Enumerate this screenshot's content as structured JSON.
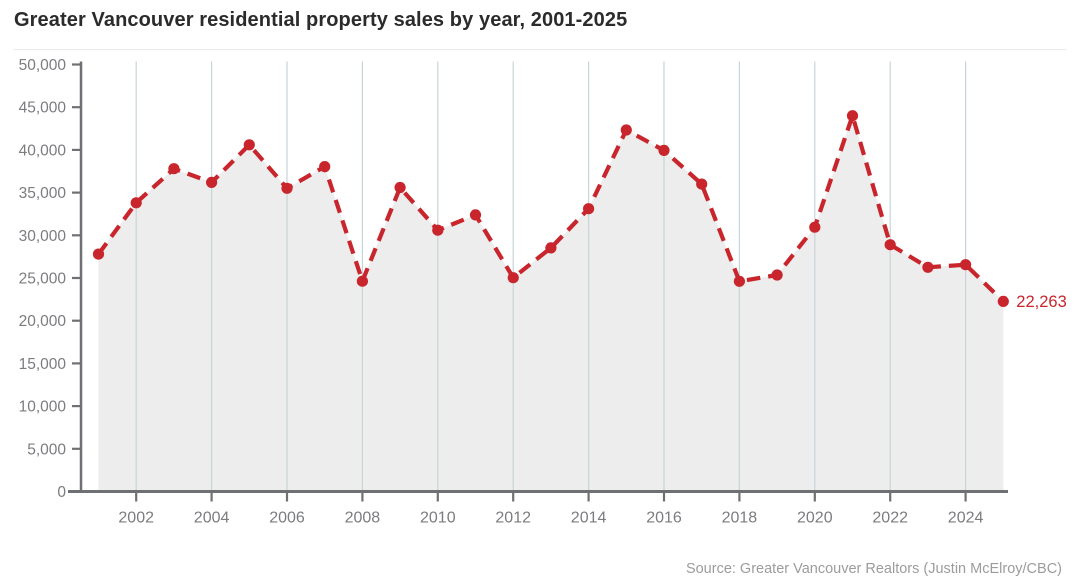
{
  "title": "Greater Vancouver residential property sales by year, 2001-2025",
  "source": "Source: Greater Vancouver Realtors (Justin McElroy/CBC)",
  "colors": {
    "line": "#c8262c",
    "marker": "#c8262c",
    "annotation": "#c8262c",
    "area_fill": "#ededed",
    "gridline": "#c9d4d8",
    "axis": "#6f7073",
    "tick_label": "#7b7c7f",
    "title_text": "#2b2b2b",
    "source_text": "#9c9c9c"
  },
  "chart_data": {
    "type": "line",
    "title": "Greater Vancouver residential property sales by year, 2001-2025",
    "xlabel": "",
    "ylabel": "",
    "x": [
      2001,
      2002,
      2003,
      2004,
      2005,
      2006,
      2007,
      2008,
      2009,
      2010,
      2011,
      2012,
      2013,
      2014,
      2015,
      2016,
      2017,
      2018,
      2019,
      2020,
      2021,
      2022,
      2023,
      2024,
      2025
    ],
    "series": [
      {
        "name": "Residential property sales",
        "values": [
          27800,
          33800,
          37800,
          36200,
          40600,
          35500,
          38050,
          24626,
          35600,
          30595,
          32390,
          25032,
          28524,
          33116,
          42326,
          39943,
          35993,
          24619,
          25351,
          30944,
          43999,
          28903,
          26249,
          26561,
          22263
        ]
      }
    ],
    "line_style": "dashed",
    "markers": true,
    "area_fill": true,
    "grid": "vertical",
    "legend": "none",
    "xlim": [
      2001,
      2025
    ],
    "ylim": [
      0,
      50000
    ],
    "yticks": [
      0,
      5000,
      10000,
      15000,
      20000,
      25000,
      30000,
      35000,
      40000,
      45000,
      50000
    ],
    "ytick_labels": [
      "0",
      "5,000",
      "10,000",
      "15,000",
      "20,000",
      "25,000",
      "30,000",
      "35,000",
      "40,000",
      "45,000",
      "50,000"
    ],
    "xticks": [
      2002,
      2004,
      2006,
      2008,
      2010,
      2012,
      2014,
      2016,
      2018,
      2020,
      2022,
      2024
    ],
    "xtick_labels": [
      "2002",
      "2004",
      "2006",
      "2008",
      "2010",
      "2012",
      "2014",
      "2016",
      "2018",
      "2020",
      "2022",
      "2024"
    ],
    "annotation": {
      "x": 2025,
      "label": "22,263"
    }
  }
}
